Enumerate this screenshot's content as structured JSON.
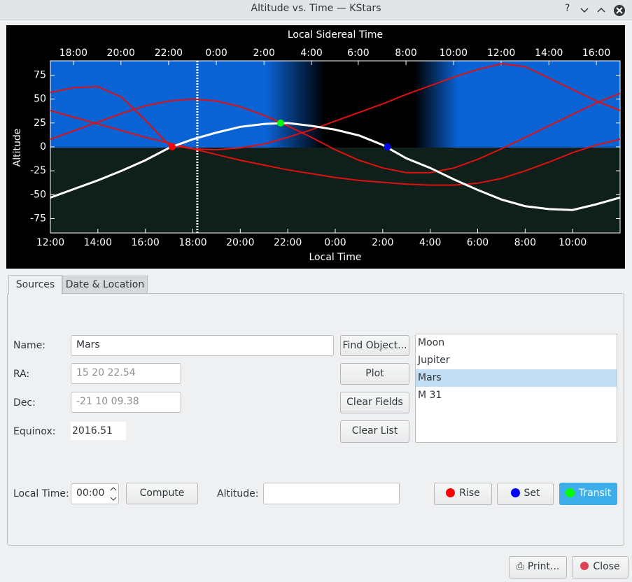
{
  "window": {
    "title": "Altitude vs. Time — KStars",
    "help": "?"
  },
  "chart_data": {
    "type": "line",
    "title": "Local Sidereal Time",
    "x_label": "Local Time",
    "y_label": "Altitude",
    "x": [
      0,
      1,
      2,
      3,
      4,
      5,
      6,
      7,
      8,
      9,
      10,
      11,
      12,
      13,
      14,
      15,
      16,
      17,
      18,
      19,
      20,
      21,
      22,
      23,
      24
    ],
    "xlim": [
      0,
      24
    ],
    "xticks": [
      {
        "value": 0,
        "label": "12:00"
      },
      {
        "value": 2,
        "label": "14:00"
      },
      {
        "value": 4,
        "label": "16:00"
      },
      {
        "value": 6,
        "label": "18:00"
      },
      {
        "value": 8,
        "label": "20:00"
      },
      {
        "value": 10,
        "label": "22:00"
      },
      {
        "value": 12,
        "label": "0:00"
      },
      {
        "value": 14,
        "label": "2:00"
      },
      {
        "value": 16,
        "label": "4:00"
      },
      {
        "value": 18,
        "label": "6:00"
      },
      {
        "value": 20,
        "label": "8:00"
      },
      {
        "value": 22,
        "label": "10:00"
      }
    ],
    "x2ticks": [
      {
        "value": 0.97,
        "label": "18:00"
      },
      {
        "value": 2.97,
        "label": "20:00"
      },
      {
        "value": 4.98,
        "label": "22:00"
      },
      {
        "value": 6.99,
        "label": "0:00"
      },
      {
        "value": 9.0,
        "label": "2:00"
      },
      {
        "value": 11.0,
        "label": "4:00"
      },
      {
        "value": 12.97,
        "label": "6:00"
      },
      {
        "value": 14.98,
        "label": "8:00"
      },
      {
        "value": 16.98,
        "label": "10:00"
      },
      {
        "value": 18.99,
        "label": "12:00"
      },
      {
        "value": 21.0,
        "label": "14:00"
      },
      {
        "value": 23.0,
        "label": "16:00"
      }
    ],
    "ylim": [
      -90,
      90
    ],
    "yticks": [
      -75,
      -50,
      -25,
      0,
      25,
      50,
      75
    ],
    "series": [
      {
        "color": "#e01010",
        "values": [
          57,
          62,
          63,
          52,
          28,
          2,
          -2,
          -3,
          -1,
          3,
          10,
          18,
          27,
          36,
          45,
          55,
          64,
          73,
          81,
          87,
          84,
          72,
          60,
          48,
          38
        ]
      },
      {
        "color": "#e01010",
        "values": [
          38,
          31,
          24,
          17,
          10,
          4,
          -2,
          -8,
          -14,
          -19,
          -24,
          -28,
          -32,
          -35,
          -37,
          -39,
          -40,
          -40,
          -38,
          -33,
          -25,
          -16,
          -6,
          2,
          8
        ]
      },
      {
        "color": "#e01010",
        "values": [
          8,
          17,
          26,
          35,
          43,
          48,
          50,
          48,
          42,
          33,
          22,
          10,
          -3,
          -14,
          -22,
          -27,
          -27,
          -22,
          -13,
          -2,
          10,
          22,
          34,
          46,
          56
        ]
      },
      {
        "color": "#ffffff",
        "values": [
          -53,
          -44,
          -35,
          -25,
          -14,
          -1,
          8,
          15,
          21,
          24,
          25,
          22,
          18,
          12,
          2,
          -12,
          -22,
          -34,
          -45,
          -55,
          -62,
          -65,
          -66,
          -60,
          -53
        ]
      }
    ],
    "events": [
      {
        "x": 5.13,
        "y": 0,
        "color": "#ff0000"
      },
      {
        "x": 9.7,
        "y": 25,
        "color": "#00ff00"
      },
      {
        "x": 14.2,
        "y": 0,
        "color": "#0000ff"
      }
    ],
    "now": 6.19
  },
  "tabs": [
    "Sources",
    "Date & Location"
  ],
  "form": {
    "name_label": "Name:",
    "name": "Mars",
    "ra_label": "RA:",
    "ra": "15 20 22.54",
    "dec_label": "Dec:",
    "dec": "-21 10 09.38",
    "equinox_label": "Equinox:",
    "equinox": "2016.51",
    "local_time_label": "Local Time:",
    "local_time": "00:00",
    "altitude_label": "Altitude:"
  },
  "buttons": {
    "find": "Find Object...",
    "plot": "Plot",
    "clear_fields": "Clear Fields",
    "clear_list": "Clear List",
    "compute": "Compute",
    "rise": "Rise",
    "set": "Set",
    "transit": "Transit",
    "print": "Print...",
    "close": "Close"
  },
  "objects": [
    "Moon",
    "Jupiter",
    "Mars",
    "M 31"
  ],
  "selected": 2
}
